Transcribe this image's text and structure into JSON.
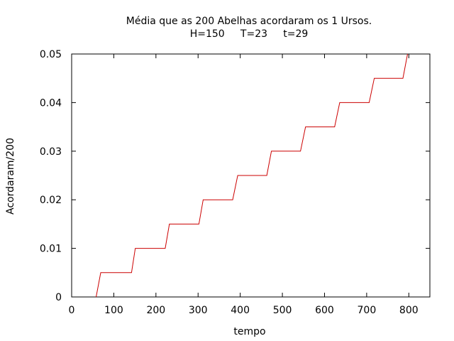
{
  "chart_data": {
    "type": "line",
    "title_line1": "Média que as 200 Abelhas acordaram os 1 Ursos.",
    "title_line2": "H=150     T=23     t=29",
    "xlabel": "tempo",
    "ylabel": "Acordaram/200",
    "xlim": [
      0,
      850
    ],
    "ylim": [
      0,
      0.05
    ],
    "x_ticks": [
      0,
      100,
      200,
      300,
      400,
      500,
      600,
      700,
      800
    ],
    "y_ticks": [
      0,
      0.01,
      0.02,
      0.03,
      0.04,
      0.05
    ],
    "x_tick_labels": [
      "0",
      "100",
      "200",
      "300",
      "400",
      "500",
      "600",
      "700",
      "800"
    ],
    "y_tick_labels": [
      "0",
      "0.01",
      "0.02",
      "0.03",
      "0.04",
      "0.05"
    ],
    "grid": false,
    "series": [
      {
        "color": "#cc0000",
        "x": [
          58,
          69,
          142,
          151,
          222,
          232,
          302,
          312,
          382,
          394,
          463,
          474,
          543,
          555,
          624,
          636,
          706,
          718,
          786,
          797
        ],
        "y": [
          0,
          0.005,
          0.005,
          0.01,
          0.01,
          0.015,
          0.015,
          0.02,
          0.02,
          0.025,
          0.025,
          0.03,
          0.03,
          0.035,
          0.035,
          0.04,
          0.04,
          0.045,
          0.045,
          0.05
        ]
      }
    ]
  }
}
